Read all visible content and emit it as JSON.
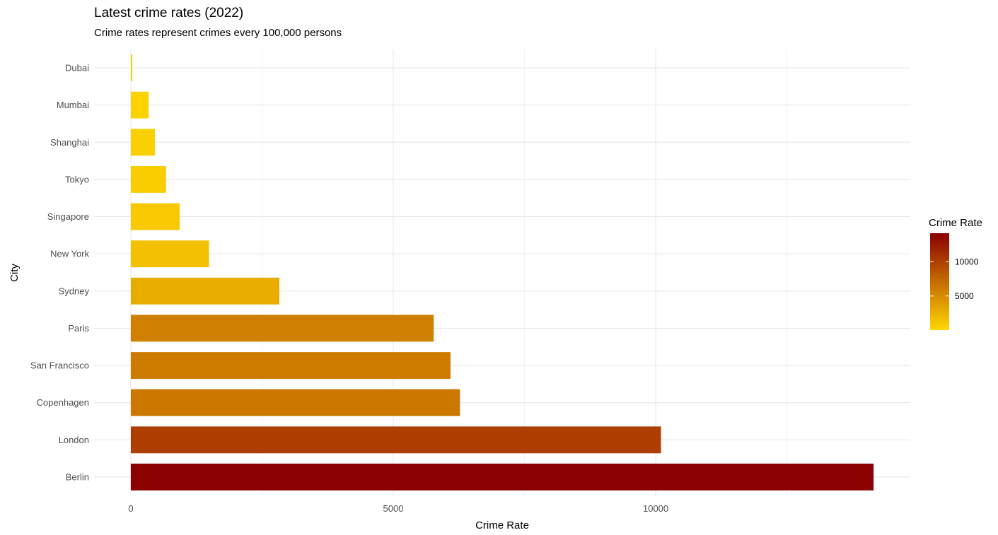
{
  "chart_data": {
    "type": "bar",
    "orientation": "horizontal",
    "title": "Latest crime rates (2022)",
    "subtitle": "Crime rates represent crimes every 100,000 persons",
    "xlabel": "Crime Rate",
    "ylabel": "City",
    "categories": [
      "Berlin",
      "London",
      "Copenhagen",
      "San Francisco",
      "Paris",
      "Sydney",
      "New York",
      "Singapore",
      "Tokyo",
      "Shanghai",
      "Mumbai",
      "Dubai"
    ],
    "values": [
      14150,
      10100,
      6270,
      6090,
      5770,
      2830,
      1490,
      930,
      670,
      460,
      340,
      30
    ],
    "xlim": [
      -700,
      14850
    ],
    "x_ticks": [
      0,
      5000,
      10000
    ],
    "x_tick_labels": [
      "0",
      "5000",
      "10000"
    ],
    "grid": true,
    "legend": {
      "title": "Crime Rate",
      "position": "right",
      "type": "gradient",
      "ticks": [
        5000,
        10000
      ],
      "tick_labels": [
        "5000",
        "10000"
      ],
      "range": [
        30,
        14150
      ],
      "low_color": "#FFD700",
      "high_color": "#8B0000"
    }
  }
}
